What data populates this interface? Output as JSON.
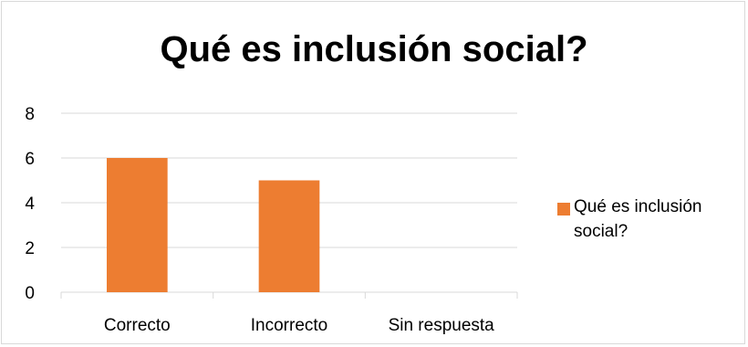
{
  "chart_data": {
    "type": "bar",
    "title": "Qué es inclusión social?",
    "categories": [
      "Correcto",
      "Incorrecto",
      "Sin respuesta"
    ],
    "series": [
      {
        "name": "Qué es inclusión social?",
        "values": [
          6,
          5,
          0
        ],
        "color": "#ED7D31"
      }
    ],
    "ylim": [
      0,
      8
    ],
    "yticks": [
      "0",
      "2",
      "4",
      "6",
      "8"
    ],
    "grid": true,
    "legend": "right"
  }
}
